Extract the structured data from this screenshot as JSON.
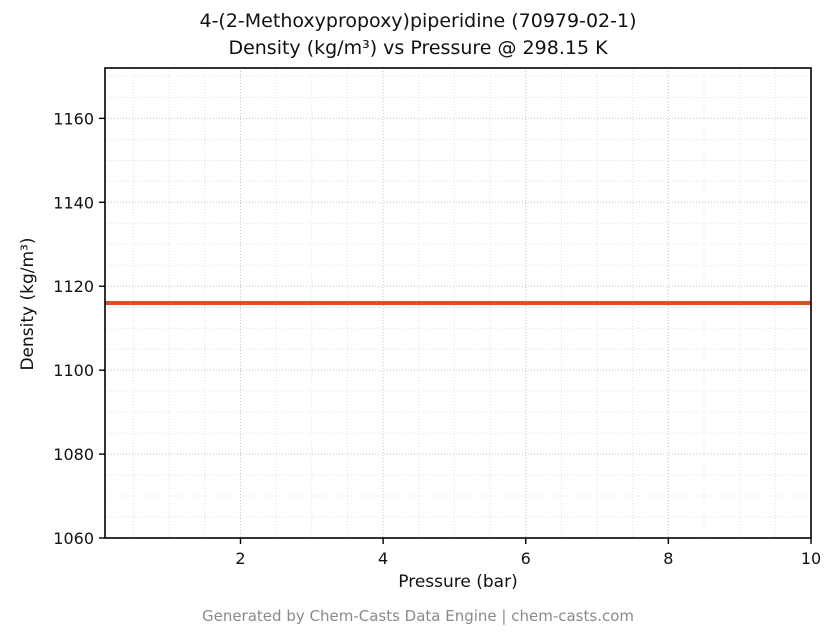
{
  "title": {
    "line1": "4-(2-Methoxypropoxy)piperidine (70979-02-1)",
    "line2": "Density (kg/m³) vs Pressure @ 298.15 K"
  },
  "footer": "Generated by Chem-Casts Data Engine | chem-casts.com",
  "chart_data": {
    "type": "line",
    "title": "4-(2-Methoxypropoxy)piperidine (70979-02-1) Density (kg/m³) vs Pressure @ 298.15 K",
    "xlabel": "Pressure (bar)",
    "ylabel": "Density (kg/m³)",
    "xlim": [
      0.1,
      10
    ],
    "ylim": [
      1060,
      1172
    ],
    "xticks": [
      2,
      4,
      6,
      8,
      10
    ],
    "yticks": [
      1060,
      1080,
      1100,
      1120,
      1140,
      1160
    ],
    "grid": true,
    "minor_x_step": 0.5,
    "minor_y_step": 5,
    "grid_minor_color": "#e0e0e0",
    "grid_major_color": "#c9c9c9",
    "frame_color": "#000000",
    "tick_label_color": "#111111",
    "series": [
      {
        "name": "density-isotherm-298.15K",
        "x": [
          0.1,
          10
        ],
        "y": [
          1116,
          1116
        ],
        "color": "#d9531e",
        "width": 4
      }
    ]
  }
}
